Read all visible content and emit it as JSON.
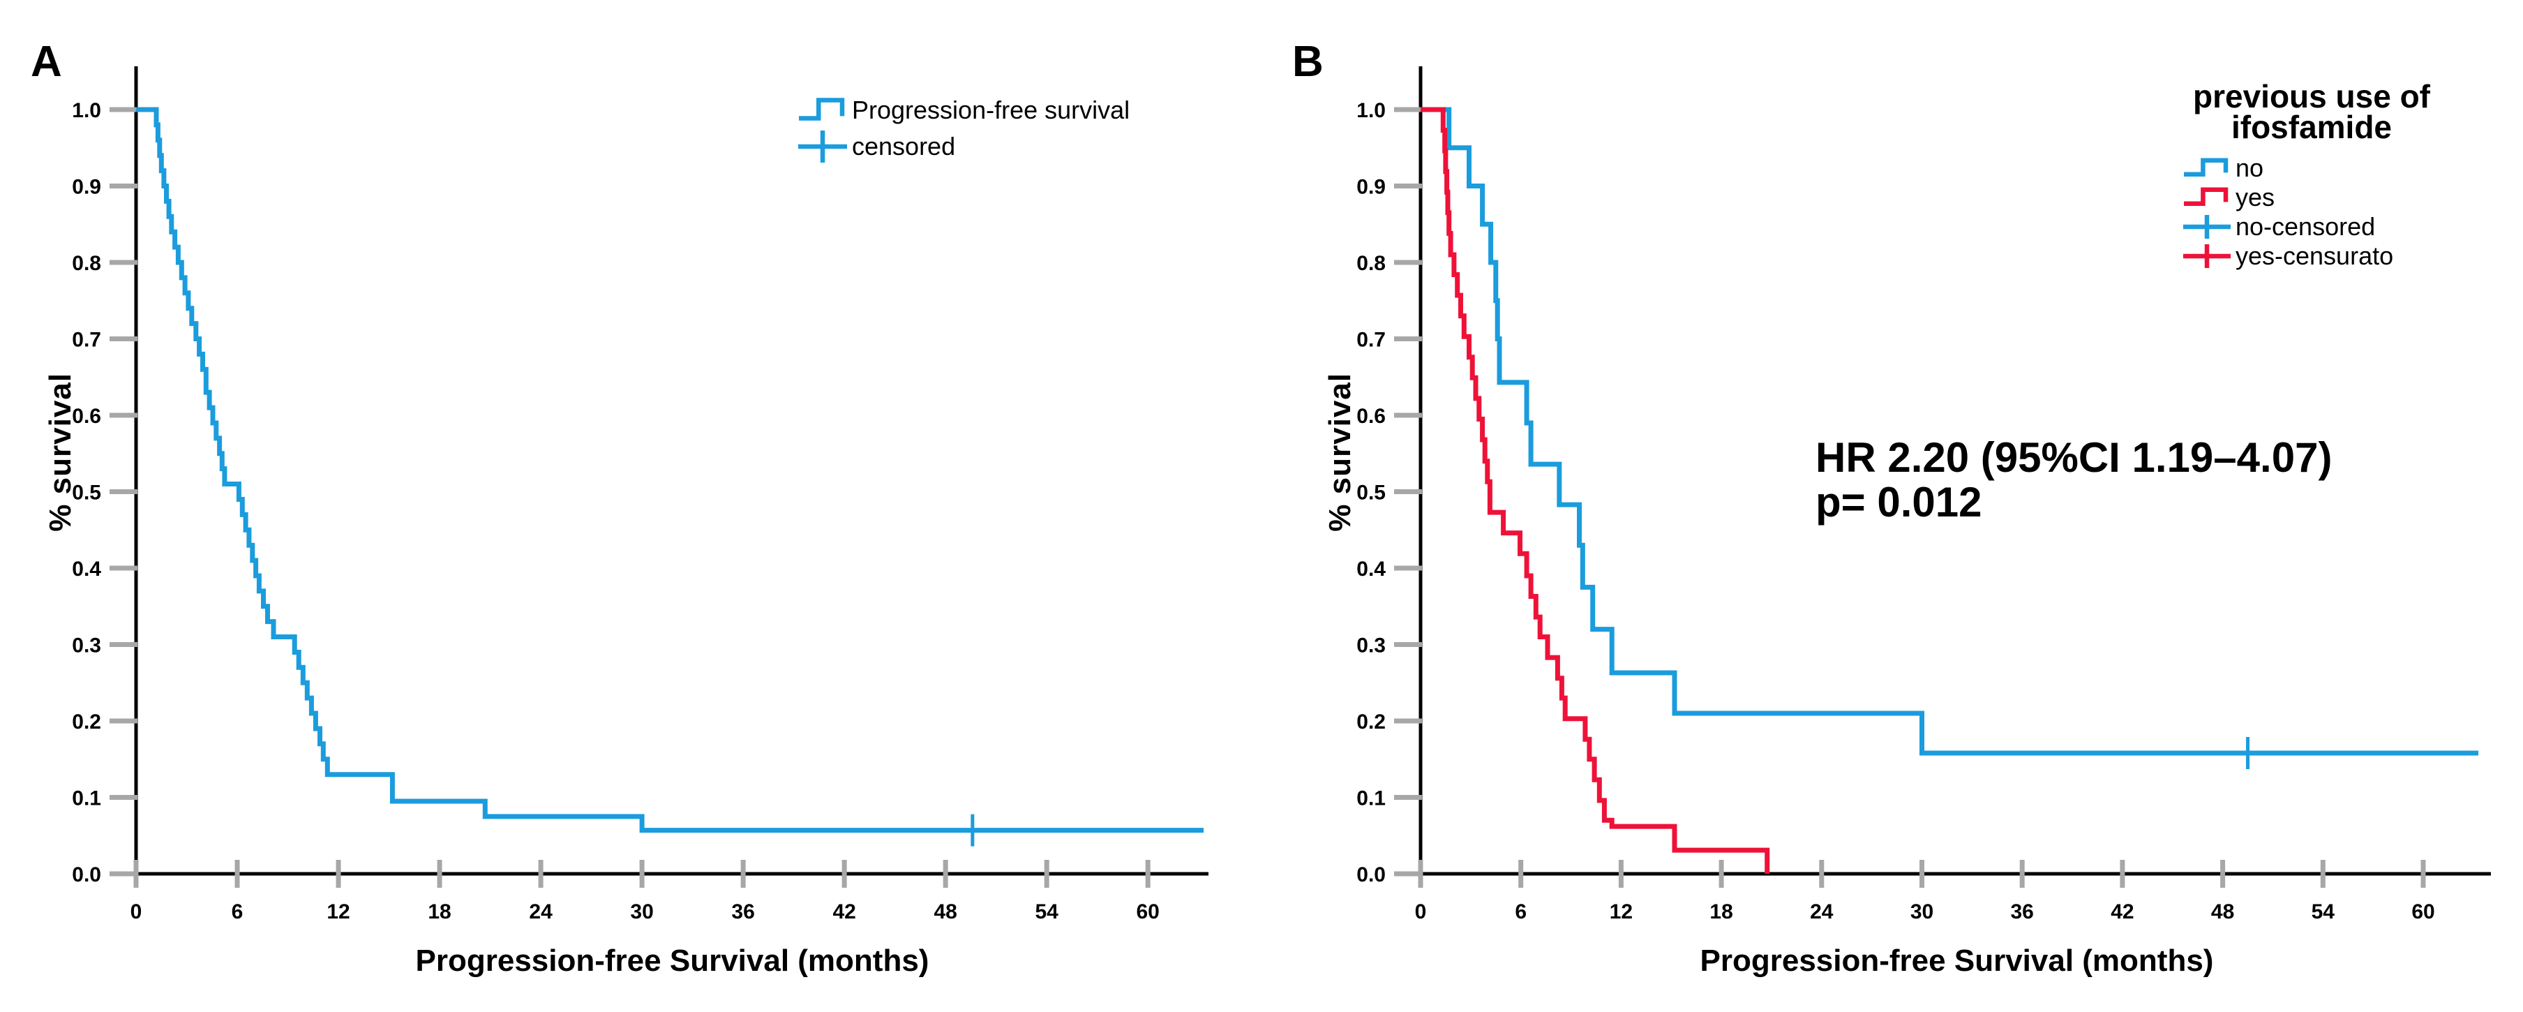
{
  "figure": {
    "background": "#ffffff",
    "accent_blue": "#1B9CDD",
    "accent_red": "#EE1238",
    "tick_color": "#A7A7A7",
    "panels": [
      {
        "label": "A",
        "y_axis_title": "% survival",
        "x_axis_title": "Progression-free Survival (months)",
        "legend": {
          "items": [
            {
              "label": "Progression-free survival",
              "glyph": "step-line-icon",
              "color": "#1B9CDD"
            },
            {
              "label": "censored",
              "glyph": "plus-censor-icon",
              "color": "#1B9CDD"
            }
          ]
        }
      },
      {
        "label": "B",
        "y_axis_title": "% survival",
        "x_axis_title": "Progression-free Survival (months)",
        "legend": {
          "title_lines": [
            "previous use of",
            "ifosfamide"
          ],
          "items": [
            {
              "label": "no",
              "glyph": "step-line-icon",
              "color": "#1B9CDD"
            },
            {
              "label": "yes",
              "glyph": "step-line-icon",
              "color": "#EE1238"
            },
            {
              "label": "no-censored",
              "glyph": "plus-censor-icon",
              "color": "#1B9CDD"
            },
            {
              "label": "yes-censurato",
              "glyph": "plus-censor-icon",
              "color": "#EE1238"
            }
          ]
        },
        "annotation": {
          "line1": "HR 2.20 (95%CI 1.19–4.07)",
          "line2": "p= 0.012"
        }
      }
    ]
  },
  "chart_data": [
    {
      "type": "line",
      "subtype": "kaplan-meier-step",
      "panel": "A",
      "title": "",
      "xlabel": "Progression-free Survival (months)",
      "ylabel": "% survival",
      "xlim": [
        0,
        64
      ],
      "ylim": [
        0.0,
        1.0
      ],
      "grid": false,
      "legend_position": "top-right",
      "x_tick_values": [
        0,
        6,
        12,
        18,
        24,
        30,
        36,
        42,
        48,
        54,
        60
      ],
      "x_tick_labels": [
        "0",
        "6",
        "12",
        "18",
        "24",
        "30",
        "36",
        "42",
        "48",
        "54",
        "60"
      ],
      "y_tick_values": [
        0.0,
        0.1,
        0.2,
        0.3,
        0.4,
        0.5,
        0.6,
        0.7,
        0.8,
        0.9,
        1.0
      ],
      "y_tick_labels": [
        "0.0",
        "0.1",
        "0.2",
        "0.3",
        "0.4",
        "0.5",
        "0.6",
        "0.7",
        "0.8",
        "0.9",
        "1.0"
      ],
      "series": [
        {
          "name": "Progression-free survival",
          "color": "#1B9CDD",
          "steps": [
            [
              0,
              1.0
            ],
            [
              1.15,
              1.0
            ],
            [
              1.2,
              0.98
            ],
            [
              1.3,
              0.96
            ],
            [
              1.4,
              0.94
            ],
            [
              1.5,
              0.92
            ],
            [
              1.65,
              0.9
            ],
            [
              1.8,
              0.88
            ],
            [
              1.95,
              0.86
            ],
            [
              2.1,
              0.84
            ],
            [
              2.3,
              0.82
            ],
            [
              2.5,
              0.8
            ],
            [
              2.7,
              0.78
            ],
            [
              2.9,
              0.76
            ],
            [
              3.1,
              0.74
            ],
            [
              3.3,
              0.72
            ],
            [
              3.55,
              0.7
            ],
            [
              3.75,
              0.68
            ],
            [
              3.95,
              0.66
            ],
            [
              4.15,
              0.63
            ],
            [
              4.35,
              0.61
            ],
            [
              4.55,
              0.59
            ],
            [
              4.75,
              0.57
            ],
            [
              4.95,
              0.55
            ],
            [
              5.1,
              0.53
            ],
            [
              5.25,
              0.51
            ],
            [
              6.1,
              0.49
            ],
            [
              6.3,
              0.47
            ],
            [
              6.5,
              0.45
            ],
            [
              6.7,
              0.43
            ],
            [
              6.9,
              0.41
            ],
            [
              7.1,
              0.39
            ],
            [
              7.3,
              0.37
            ],
            [
              7.55,
              0.35
            ],
            [
              7.8,
              0.33
            ],
            [
              8.15,
              0.31
            ],
            [
              9.4,
              0.29
            ],
            [
              9.65,
              0.27
            ],
            [
              9.9,
              0.25
            ],
            [
              10.15,
              0.23
            ],
            [
              10.4,
              0.21
            ],
            [
              10.65,
              0.19
            ],
            [
              10.9,
              0.17
            ],
            [
              11.1,
              0.15
            ],
            [
              11.35,
              0.13
            ],
            [
              15.2,
              0.095
            ],
            [
              20.7,
              0.075
            ],
            [
              30,
              0.057
            ],
            [
              63.3,
              0.057
            ]
          ],
          "censored": [
            [
              49.6,
              0.057
            ]
          ]
        }
      ]
    },
    {
      "type": "line",
      "subtype": "kaplan-meier-step",
      "panel": "B",
      "title": "previous use of ifosfamide",
      "xlabel": "Progression-free Survival (months)",
      "ylabel": "% survival",
      "xlim": [
        0,
        64
      ],
      "ylim": [
        0.0,
        1.0
      ],
      "grid": false,
      "legend_position": "top-right",
      "annotation_text": [
        "HR 2.20 (95%CI 1.19–4.07)",
        "p= 0.012"
      ],
      "x_tick_values": [
        0,
        6,
        12,
        18,
        24,
        30,
        36,
        42,
        48,
        54,
        60
      ],
      "x_tick_labels": [
        "0",
        "6",
        "12",
        "18",
        "24",
        "30",
        "36",
        "42",
        "48",
        "54",
        "60"
      ],
      "y_tick_values": [
        0.0,
        0.1,
        0.2,
        0.3,
        0.4,
        0.5,
        0.6,
        0.7,
        0.8,
        0.9,
        1.0
      ],
      "y_tick_labels": [
        "0.0",
        "0.1",
        "0.2",
        "0.3",
        "0.4",
        "0.5",
        "0.6",
        "0.7",
        "0.8",
        "0.9",
        "1.0"
      ],
      "series": [
        {
          "name": "no",
          "color": "#1B9CDD",
          "steps": [
            [
              0,
              1.0
            ],
            [
              1.7,
              0.95
            ],
            [
              2.9,
              0.9
            ],
            [
              3.7,
              0.85
            ],
            [
              4.2,
              0.8
            ],
            [
              4.5,
              0.75
            ],
            [
              4.6,
              0.7
            ],
            [
              4.72,
              0.643
            ],
            [
              6.35,
              0.59
            ],
            [
              6.6,
              0.536
            ],
            [
              8.3,
              0.483
            ],
            [
              9.5,
              0.43
            ],
            [
              9.7,
              0.375
            ],
            [
              10.3,
              0.32
            ],
            [
              11.45,
              0.263
            ],
            [
              15.2,
              0.21
            ],
            [
              30,
              0.158
            ],
            [
              63.3,
              0.158
            ]
          ],
          "censored": [
            [
              49.5,
              0.158
            ]
          ]
        },
        {
          "name": "yes",
          "color": "#EE1238",
          "steps": [
            [
              0,
              1.0
            ],
            [
              1.35,
              0.973
            ],
            [
              1.45,
              0.946
            ],
            [
              1.5,
              0.919
            ],
            [
              1.57,
              0.892
            ],
            [
              1.63,
              0.865
            ],
            [
              1.7,
              0.838
            ],
            [
              1.8,
              0.81
            ],
            [
              2.0,
              0.784
            ],
            [
              2.2,
              0.757
            ],
            [
              2.4,
              0.73
            ],
            [
              2.6,
              0.703
            ],
            [
              2.9,
              0.676
            ],
            [
              3.1,
              0.649
            ],
            [
              3.3,
              0.622
            ],
            [
              3.5,
              0.595
            ],
            [
              3.7,
              0.568
            ],
            [
              3.85,
              0.54
            ],
            [
              4.0,
              0.513
            ],
            [
              4.15,
              0.473
            ],
            [
              4.95,
              0.446
            ],
            [
              5.95,
              0.419
            ],
            [
              6.35,
              0.39
            ],
            [
              6.6,
              0.363
            ],
            [
              6.9,
              0.336
            ],
            [
              7.15,
              0.31
            ],
            [
              7.6,
              0.283
            ],
            [
              8.2,
              0.256
            ],
            [
              8.45,
              0.23
            ],
            [
              8.65,
              0.203
            ],
            [
              9.85,
              0.176
            ],
            [
              10.1,
              0.15
            ],
            [
              10.4,
              0.123
            ],
            [
              10.7,
              0.096
            ],
            [
              11.0,
              0.07
            ],
            [
              11.45,
              0.062
            ],
            [
              15.2,
              0.031
            ],
            [
              20.74,
              0.0
            ]
          ],
          "censored": []
        }
      ]
    }
  ]
}
